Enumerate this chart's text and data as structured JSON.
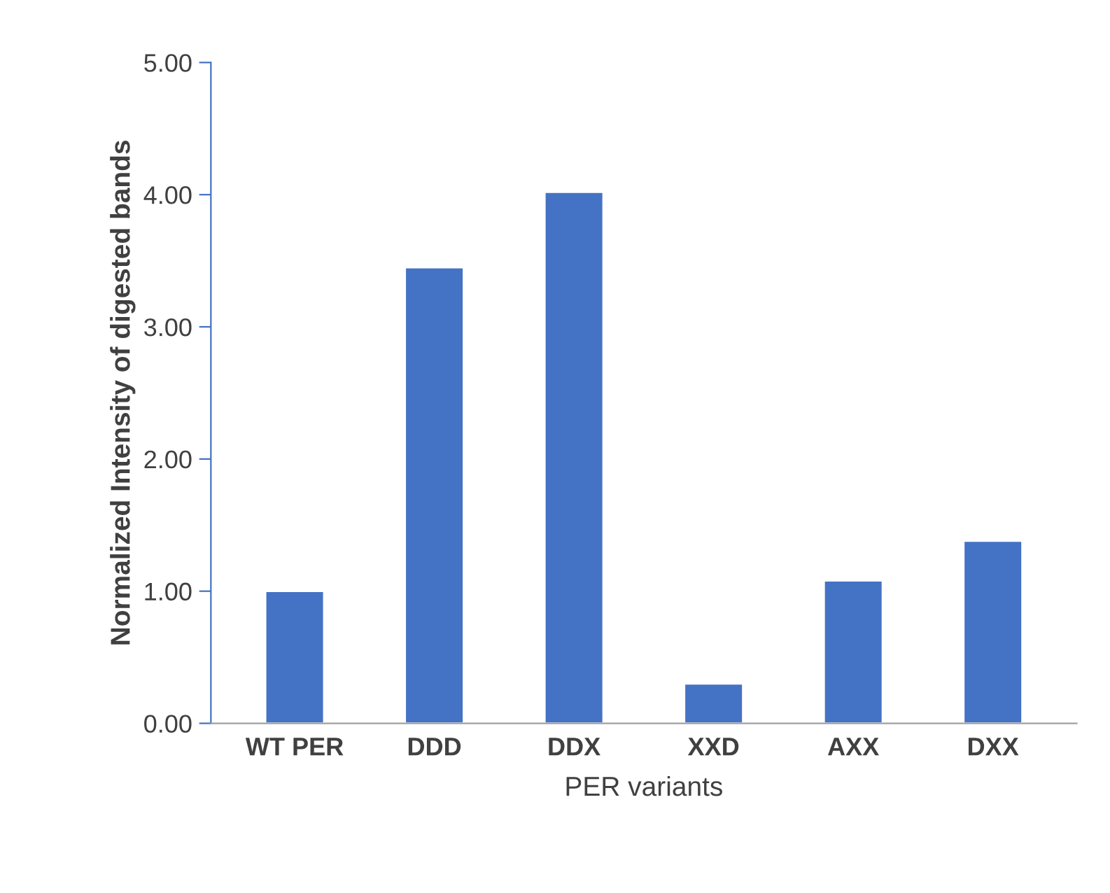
{
  "chart_data": {
    "type": "bar",
    "xlabel": "PER variants",
    "ylabel": "Normalized Intensity of digested bands",
    "categories": [
      "WT PER",
      "DDD",
      "DDX",
      "XXD",
      "AXX",
      "DXX"
    ],
    "values": [
      1.0,
      3.45,
      4.02,
      0.3,
      1.08,
      1.38
    ],
    "color": "#4472c4",
    "ylim": [
      0,
      5
    ],
    "yticks": [
      {
        "value": 0,
        "label": "0.00"
      },
      {
        "value": 1,
        "label": "1.00"
      },
      {
        "value": 2,
        "label": "2.00"
      },
      {
        "value": 3,
        "label": "3.00"
      },
      {
        "value": 4,
        "label": "4.00"
      },
      {
        "value": 5,
        "label": "5.00"
      }
    ],
    "grid": false,
    "legend": false
  }
}
